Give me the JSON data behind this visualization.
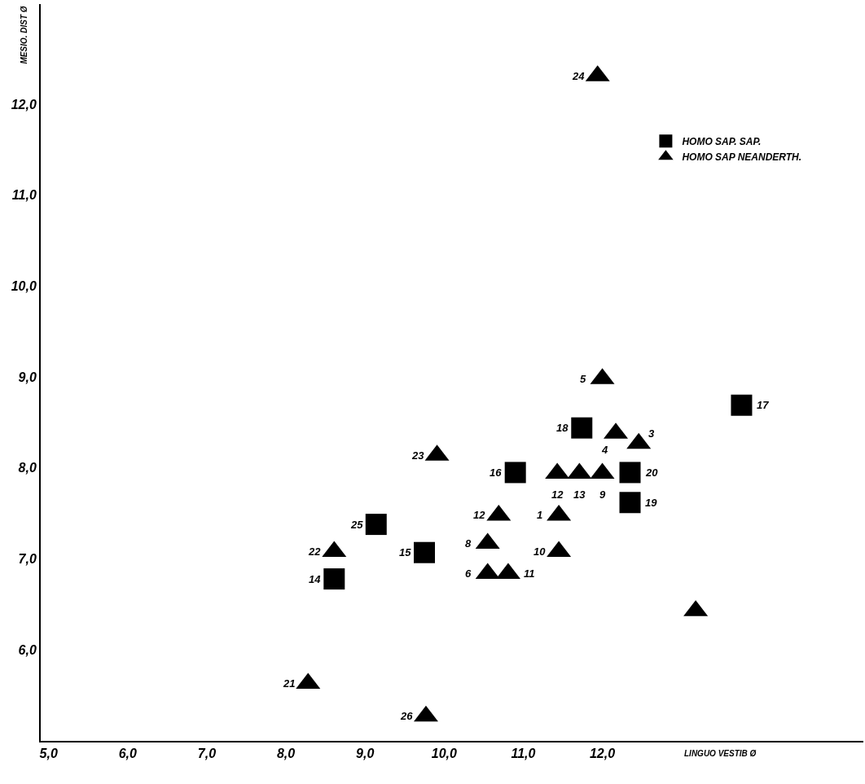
{
  "chart_data": {
    "type": "scatter",
    "xlabel": "LINGUO VESTIB Ø",
    "ylabel": "MESIO. DIST Ø",
    "xlim": [
      4.9,
      15.3
    ],
    "ylim": [
      5.0,
      13.1
    ],
    "xticks": [
      {
        "value": 5,
        "label": "5,0"
      },
      {
        "value": 6,
        "label": "6,0"
      },
      {
        "value": 7,
        "label": "7,0"
      },
      {
        "value": 8,
        "label": "8,0"
      },
      {
        "value": 9,
        "label": "9,0"
      },
      {
        "value": 10,
        "label": "10,0"
      },
      {
        "value": 11,
        "label": "11,0"
      },
      {
        "value": 12,
        "label": "12,0"
      }
    ],
    "yticks": [
      {
        "value": 6,
        "label": "6,0"
      },
      {
        "value": 7,
        "label": "7,0"
      },
      {
        "value": 8,
        "label": "8,0"
      },
      {
        "value": 9,
        "label": "9,0"
      },
      {
        "value": 10,
        "label": "10,0"
      },
      {
        "value": 11,
        "label": "11,0"
      },
      {
        "value": 12,
        "label": "12,0"
      }
    ],
    "legend": "top right",
    "series": [
      {
        "name": "HOMO SAP. SAP.",
        "color": "#000000",
        "marker": "square",
        "x": [
          11.74,
          10.9,
          12.35,
          12.35,
          9.14,
          9.75,
          8.61,
          13.76
        ],
        "values": [
          8.44,
          7.95,
          7.95,
          7.62,
          7.38,
          7.07,
          6.78,
          8.69
        ]
      },
      {
        "name": "HOMO SAP NEANDERTH.",
        "color": "#000000",
        "marker": "triangle",
        "x": [
          11.94,
          12.0,
          12.17,
          12.46,
          11.43,
          11.71,
          12.0,
          10.69,
          11.45,
          10.55,
          11.45,
          10.55,
          10.81,
          9.91,
          8.61,
          8.28,
          9.77,
          13.18
        ],
        "values": [
          12.31,
          8.98,
          8.38,
          8.27,
          7.94,
          7.94,
          7.94,
          7.48,
          7.48,
          7.17,
          7.08,
          6.84,
          6.84,
          8.14,
          7.08,
          5.63,
          5.27,
          6.43
        ]
      }
    ],
    "annotations": [
      {
        "text": "18",
        "x": 11.74,
        "y": 8.44
      },
      {
        "text": "16",
        "x": 10.9,
        "y": 7.95
      },
      {
        "text": "20",
        "x": 12.35,
        "y": 7.95
      },
      {
        "text": "19",
        "x": 12.35,
        "y": 7.62
      },
      {
        "text": "25",
        "x": 9.14,
        "y": 7.38
      },
      {
        "text": "15",
        "x": 9.75,
        "y": 7.07
      },
      {
        "text": "14",
        "x": 8.61,
        "y": 6.78
      },
      {
        "text": "17",
        "x": 13.76,
        "y": 8.69
      },
      {
        "text": "24",
        "x": 11.94,
        "y": 12.31
      },
      {
        "text": "5",
        "x": 12.0,
        "y": 8.98
      },
      {
        "text": "4",
        "x": 12.17,
        "y": 8.38
      },
      {
        "text": "3",
        "x": 12.46,
        "y": 8.27
      },
      {
        "text": "12",
        "x": 11.43,
        "y": 7.94
      },
      {
        "text": "13",
        "x": 11.71,
        "y": 7.94
      },
      {
        "text": "9",
        "x": 12.0,
        "y": 7.94
      },
      {
        "text": "12",
        "x": 10.69,
        "y": 7.48
      },
      {
        "text": "1",
        "x": 11.45,
        "y": 7.48
      },
      {
        "text": "8",
        "x": 10.55,
        "y": 7.17
      },
      {
        "text": "10",
        "x": 11.45,
        "y": 7.08
      },
      {
        "text": "6",
        "x": 10.55,
        "y": 6.84
      },
      {
        "text": "11",
        "x": 10.81,
        "y": 6.84
      },
      {
        "text": "23",
        "x": 9.91,
        "y": 8.14
      },
      {
        "text": "22",
        "x": 8.61,
        "y": 7.08
      },
      {
        "text": "21",
        "x": 8.28,
        "y": 5.63
      },
      {
        "text": "26",
        "x": 9.77,
        "y": 5.27
      }
    ]
  }
}
